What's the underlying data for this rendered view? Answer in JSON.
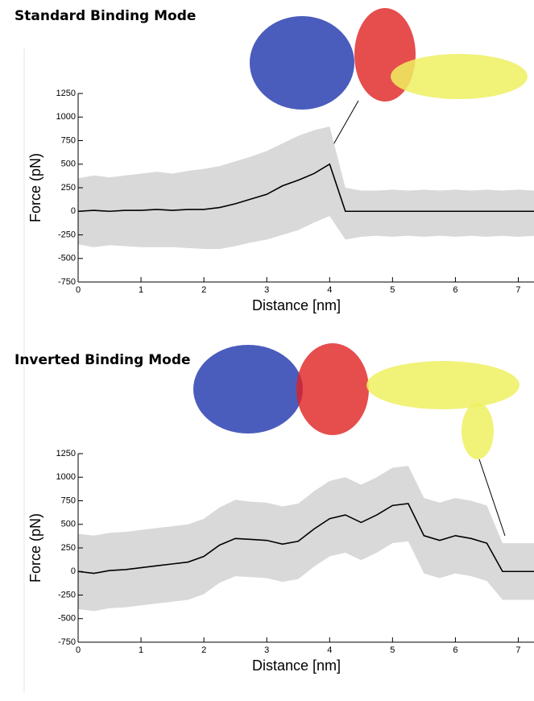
{
  "chart_data": [
    {
      "type": "line",
      "title": "Standard Binding Mode",
      "x_label": "Distance [nm]",
      "y_label": "Force (pN)",
      "xlim": [
        0,
        7.25
      ],
      "ylim": [
        -750,
        1250
      ],
      "xticks": [
        0,
        1,
        2,
        3,
        4,
        5,
        6,
        7
      ],
      "yticks": [
        -750,
        -500,
        -250,
        0,
        250,
        500,
        750,
        1000,
        1250
      ],
      "x": [
        0,
        0.25,
        0.5,
        0.75,
        1,
        1.25,
        1.5,
        1.75,
        2,
        2.25,
        2.5,
        2.75,
        3,
        3.25,
        3.5,
        3.75,
        4,
        4.25,
        4.5,
        4.75,
        5,
        5.25,
        5.5,
        5.75,
        6,
        6.25,
        6.5,
        6.75,
        7,
        7.25
      ],
      "band": {
        "color": "#d9d9d9",
        "upper": [
          350,
          380,
          360,
          380,
          400,
          420,
          400,
          430,
          450,
          480,
          530,
          580,
          640,
          720,
          800,
          860,
          900,
          250,
          220,
          220,
          230,
          220,
          230,
          220,
          230,
          220,
          230,
          220,
          230,
          220
        ],
        "lower": [
          -350,
          -380,
          -360,
          -370,
          -380,
          -380,
          -380,
          -390,
          -400,
          -400,
          -370,
          -330,
          -300,
          -250,
          -200,
          -120,
          -50,
          -300,
          -270,
          -260,
          -270,
          -260,
          -270,
          -260,
          -270,
          -260,
          -270,
          -260,
          -270,
          -260
        ]
      },
      "series": [
        {
          "color": "#000000",
          "values": [
            0,
            10,
            0,
            10,
            10,
            20,
            10,
            20,
            20,
            40,
            80,
            130,
            180,
            270,
            330,
            400,
            500,
            0,
            0,
            0,
            0,
            0,
            0,
            0,
            0,
            0,
            0,
            0,
            0,
            0
          ]
        }
      ]
    },
    {
      "type": "line",
      "title": "Inverted Binding Mode",
      "x_label": "Distance [nm]",
      "y_label": "Force (pN)",
      "xlim": [
        0,
        7.25
      ],
      "ylim": [
        -750,
        1250
      ],
      "xticks": [
        0,
        1,
        2,
        3,
        4,
        5,
        6,
        7
      ],
      "yticks": [
        -750,
        -500,
        -250,
        0,
        250,
        500,
        750,
        1000,
        1250
      ],
      "x": [
        0,
        0.25,
        0.5,
        0.75,
        1,
        1.25,
        1.5,
        1.75,
        2,
        2.25,
        2.5,
        2.75,
        3,
        3.25,
        3.5,
        3.75,
        4,
        4.25,
        4.5,
        4.75,
        5,
        5.25,
        5.5,
        5.75,
        6,
        6.25,
        6.5,
        6.75,
        7,
        7.25
      ],
      "band": {
        "color": "#d9d9d9",
        "upper": [
          400,
          380,
          410,
          420,
          440,
          460,
          480,
          500,
          560,
          680,
          760,
          740,
          730,
          690,
          720,
          850,
          960,
          1000,
          920,
          1000,
          1100,
          1120,
          780,
          730,
          780,
          750,
          700,
          300,
          300,
          300
        ],
        "lower": [
          -400,
          -420,
          -390,
          -380,
          -360,
          -340,
          -320,
          -300,
          -240,
          -120,
          -50,
          -60,
          -70,
          -110,
          -80,
          50,
          160,
          200,
          120,
          200,
          300,
          320,
          -20,
          -70,
          -20,
          -50,
          -100,
          -300,
          -300,
          -300
        ]
      },
      "series": [
        {
          "color": "#000000",
          "values": [
            0,
            -20,
            10,
            20,
            40,
            60,
            80,
            100,
            160,
            280,
            350,
            340,
            330,
            290,
            320,
            450,
            560,
            600,
            520,
            600,
            700,
            720,
            380,
            330,
            380,
            350,
            300,
            0,
            0,
            0
          ]
        }
      ]
    }
  ]
}
